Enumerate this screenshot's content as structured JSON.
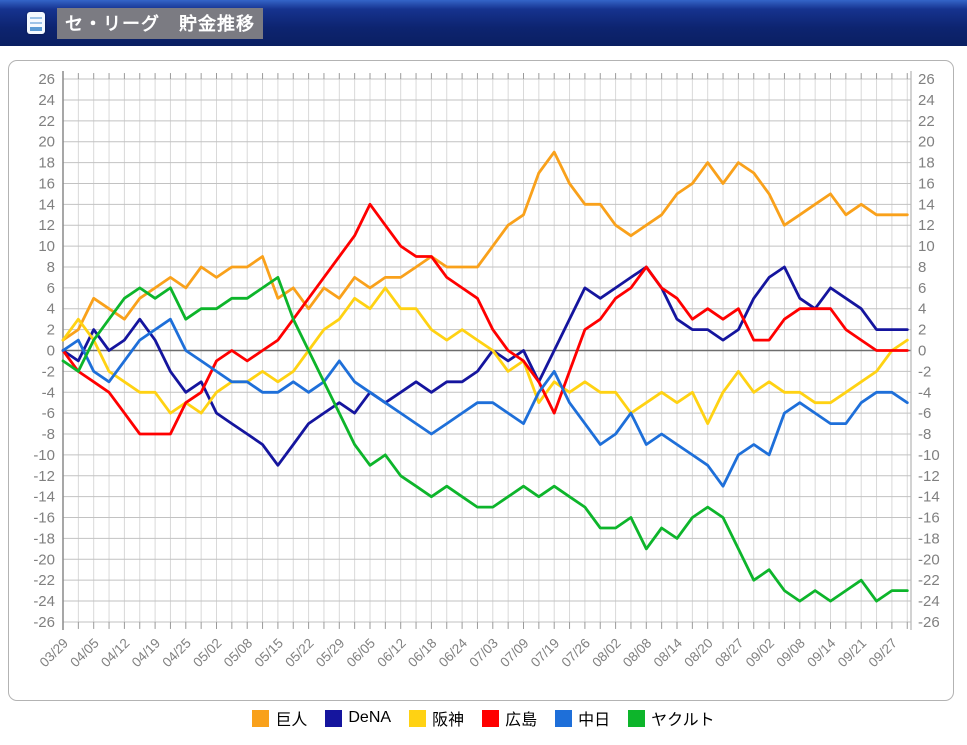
{
  "header": {
    "title": "セ・リーグ　貯金推移"
  },
  "chart_data": {
    "type": "line",
    "title": "セ・リーグ　貯金推移",
    "x_labels": [
      "03/29",
      "04/05",
      "04/12",
      "04/19",
      "04/25",
      "05/02",
      "05/08",
      "05/15",
      "05/22",
      "05/29",
      "06/05",
      "06/12",
      "06/18",
      "06/24",
      "07/03",
      "07/09",
      "07/19",
      "07/26",
      "08/02",
      "08/08",
      "08/14",
      "08/20",
      "08/27",
      "09/02",
      "09/08",
      "09/14",
      "09/21",
      "09/27"
    ],
    "x_sample_step": 0.5,
    "y_min": -26,
    "y_max": 26,
    "y_step": 2,
    "grid": true,
    "legend_position": "bottom",
    "axis_label_color": "#808080",
    "series": [
      {
        "name": "巨人",
        "color": "#f9a11b",
        "values": [
          1,
          2,
          5,
          4,
          3,
          5,
          6,
          7,
          6,
          8,
          7,
          8,
          8,
          9,
          5,
          6,
          4,
          6,
          5,
          7,
          6,
          7,
          7,
          8,
          9,
          8,
          8,
          8,
          10,
          12,
          13,
          17,
          19,
          16,
          14,
          14,
          12,
          11,
          12,
          13,
          15,
          16,
          18,
          16,
          18,
          17,
          15,
          12,
          13,
          14,
          15,
          13,
          14,
          13,
          13,
          13
        ]
      },
      {
        "name": "DeNA",
        "color": "#15159e",
        "values": [
          0,
          -1,
          2,
          0,
          1,
          3,
          1,
          -2,
          -4,
          -3,
          -6,
          -7,
          -8,
          -9,
          -11,
          -9,
          -7,
          -6,
          -5,
          -6,
          -4,
          -5,
          -4,
          -3,
          -4,
          -3,
          -3,
          -2,
          0,
          -1,
          0,
          -3,
          0,
          3,
          6,
          5,
          6,
          7,
          8,
          6,
          3,
          2,
          2,
          1,
          2,
          5,
          7,
          8,
          5,
          4,
          6,
          5,
          4,
          2,
          2,
          2
        ]
      },
      {
        "name": "阪神",
        "color": "#ffd213",
        "values": [
          1,
          3,
          1,
          -2,
          -3,
          -4,
          -4,
          -6,
          -5,
          -6,
          -4,
          -3,
          -3,
          -2,
          -3,
          -2,
          0,
          2,
          3,
          5,
          4,
          6,
          4,
          4,
          2,
          1,
          2,
          1,
          0,
          -2,
          -1,
          -5,
          -3,
          -4,
          -3,
          -4,
          -4,
          -6,
          -5,
          -4,
          -5,
          -4,
          -7,
          -4,
          -2,
          -4,
          -3,
          -4,
          -4,
          -5,
          -5,
          -4,
          -3,
          -2,
          0,
          1
        ]
      },
      {
        "name": "広島",
        "color": "#ff0000",
        "values": [
          0,
          -2,
          -3,
          -4,
          -6,
          -8,
          -8,
          -8,
          -5,
          -4,
          -1,
          0,
          -1,
          0,
          1,
          3,
          5,
          7,
          9,
          11,
          14,
          12,
          10,
          9,
          9,
          7,
          6,
          5,
          2,
          0,
          -1,
          -3,
          -6,
          -2,
          2,
          3,
          5,
          6,
          8,
          6,
          5,
          3,
          4,
          3,
          4,
          1,
          1,
          3,
          4,
          4,
          4,
          2,
          1,
          0,
          0,
          0
        ]
      },
      {
        "name": "中日",
        "color": "#1e6fd9",
        "values": [
          0,
          1,
          -2,
          -3,
          -1,
          1,
          2,
          3,
          0,
          -1,
          -2,
          -3,
          -3,
          -4,
          -4,
          -3,
          -4,
          -3,
          -1,
          -3,
          -4,
          -5,
          -6,
          -7,
          -8,
          -7,
          -6,
          -5,
          -5,
          -6,
          -7,
          -4,
          -2,
          -5,
          -7,
          -9,
          -8,
          -6,
          -9,
          -8,
          -9,
          -10,
          -11,
          -13,
          -10,
          -9,
          -10,
          -6,
          -5,
          -6,
          -7,
          -7,
          -5,
          -4,
          -4,
          -5
        ]
      },
      {
        "name": "ヤクルト",
        "color": "#0db52b",
        "values": [
          -1,
          -2,
          1,
          3,
          5,
          6,
          5,
          6,
          3,
          4,
          4,
          5,
          5,
          6,
          7,
          3,
          0,
          -3,
          -6,
          -9,
          -11,
          -10,
          -12,
          -13,
          -14,
          -13,
          -14,
          -15,
          -15,
          -14,
          -13,
          -14,
          -13,
          -14,
          -15,
          -17,
          -17,
          -16,
          -19,
          -17,
          -18,
          -16,
          -15,
          -16,
          -19,
          -22,
          -21,
          -23,
          -24,
          -23,
          -24,
          -23,
          -22,
          -24,
          -23,
          -23
        ]
      }
    ]
  }
}
